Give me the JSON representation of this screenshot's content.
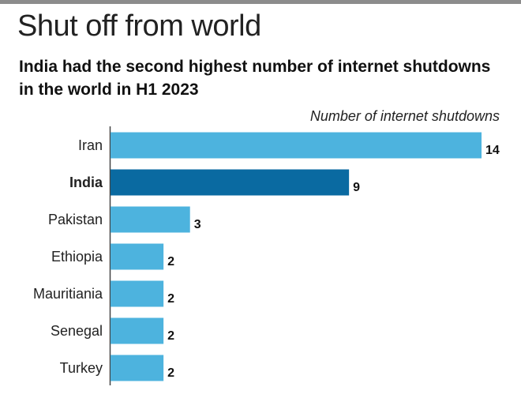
{
  "headline": "Shut off from world",
  "subtitle": "India had the second highest number of internet shutdowns in the world in H1 2023",
  "unit_label": "Number of internet shutdowns",
  "colors": {
    "bar": "#4db3de",
    "highlight": "#0a6aa1",
    "axis": "#444444",
    "top_rule": "#8c8c8c"
  },
  "chart_data": {
    "type": "bar",
    "orientation": "horizontal",
    "categories": [
      "Iran",
      "India",
      "Pakistan",
      "Ethiopia",
      "Mauritiania",
      "Senegal",
      "Turkey"
    ],
    "values": [
      14,
      9,
      3,
      2,
      2,
      2,
      2
    ],
    "highlight": "India",
    "title": "Shut off from world",
    "subtitle": "India had the second highest number of internet shutdowns in the world in H1 2023",
    "xlabel": "Number of internet shutdowns",
    "ylabel": "",
    "xlim": [
      0,
      14
    ],
    "grid": false,
    "legend": "none"
  }
}
